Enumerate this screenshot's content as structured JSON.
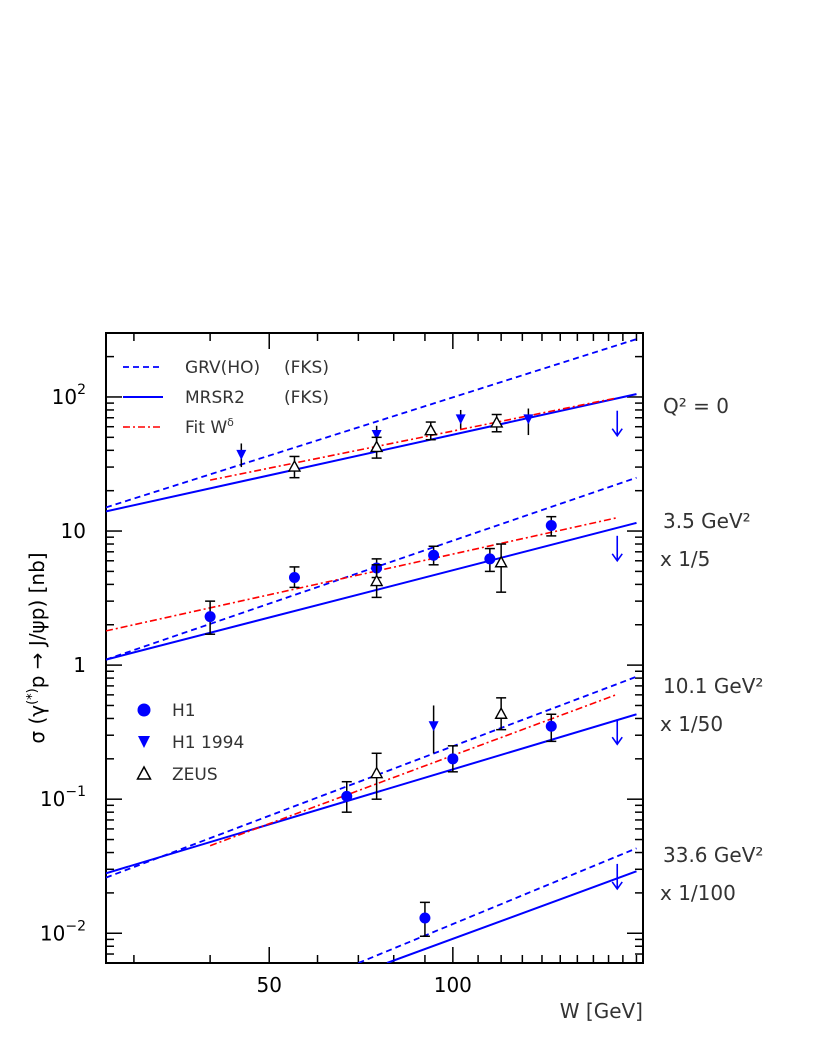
{
  "chart_data": {
    "type": "scatter",
    "title": "",
    "xlabel": "W [GeV]",
    "ylabel": "σ (γ(*)p → J/ψp)  [nb]",
    "x_scale": "log",
    "y_scale": "log",
    "xlim": [
      27,
      205
    ],
    "ylim": [
      0.006,
      300
    ],
    "x_ticks": [
      {
        "value": 50,
        "label": "50"
      },
      {
        "value": 100,
        "label": "100"
      }
    ],
    "y_ticks": [
      {
        "value": 100,
        "base": "10",
        "exp": "2"
      },
      {
        "value": 10,
        "base": "10",
        "exp": ""
      },
      {
        "value": 1,
        "base": "1",
        "exp": ""
      },
      {
        "value": 0.1,
        "base": "10",
        "exp": "−1"
      },
      {
        "value": 0.01,
        "base": "10",
        "exp": "−2"
      }
    ],
    "legend_lines": [
      {
        "label": "GRV(HO)",
        "extra": "(FKS)",
        "style": "dashed",
        "color": "#0000ff"
      },
      {
        "label": "MRSR2",
        "extra": "(FKS)",
        "style": "solid",
        "color": "#0000ff"
      },
      {
        "label": "Fit W",
        "sup": "δ",
        "extra": "",
        "style": "dashdot",
        "color": "#ff0000"
      }
    ],
    "legend_markers": [
      {
        "label": "H1",
        "marker": "circle",
        "color": "#0000ff"
      },
      {
        "label": "H1 1994",
        "marker": "triangle-down",
        "color": "#0000ff"
      },
      {
        "label": "ZEUS",
        "marker": "triangle-up-open",
        "color": "#000000"
      }
    ],
    "q2_labels": [
      {
        "line1": "Q² = 0",
        "line2": ""
      },
      {
        "line1": "3.5 GeV²",
        "line2": "x 1/5"
      },
      {
        "line1": "10.1 GeV²",
        "line2": "x 1/50"
      },
      {
        "line1": "33.6 GeV²",
        "line2": "x 1/100"
      }
    ],
    "panels": [
      {
        "q2": "0",
        "grv": [
          [
            27,
            15
          ],
          [
            200,
            270
          ]
        ],
        "mrsr2": [
          [
            27,
            14
          ],
          [
            200,
            105
          ]
        ],
        "fit": [
          [
            40,
            24
          ],
          [
            185,
            98
          ]
        ],
        "h1": [],
        "h1_1994": [
          {
            "x": 45,
            "y": 37,
            "lo": 30,
            "hi": 45
          },
          {
            "x": 75,
            "y": 52,
            "lo": 44,
            "hi": 61
          },
          {
            "x": 103,
            "y": 68,
            "lo": 58,
            "hi": 80
          },
          {
            "x": 133,
            "y": 68,
            "lo": 52,
            "hi": 82
          }
        ],
        "zeus": [
          {
            "x": 55,
            "y": 30,
            "lo": 25,
            "hi": 36
          },
          {
            "x": 75,
            "y": 42,
            "lo": 35,
            "hi": 50
          },
          {
            "x": 92,
            "y": 56,
            "lo": 48,
            "hi": 65
          },
          {
            "x": 118,
            "y": 64,
            "lo": 55,
            "hi": 74
          }
        ],
        "upper_limits": [
          {
            "x": 186,
            "y": 60
          }
        ]
      },
      {
        "q2": "3.5",
        "grv": [
          [
            27,
            1.1
          ],
          [
            200,
            25
          ]
        ],
        "mrsr2": [
          [
            27,
            1.1
          ],
          [
            200,
            11.5
          ]
        ],
        "fit": [
          [
            27,
            1.8
          ],
          [
            185,
            12.5
          ]
        ],
        "h1": [
          {
            "x": 40,
            "y": 2.3,
            "lo": 1.7,
            "hi": 3.0
          },
          {
            "x": 55,
            "y": 4.5,
            "lo": 3.8,
            "hi": 5.4
          },
          {
            "x": 75,
            "y": 5.3,
            "lo": 4.5,
            "hi": 6.2
          },
          {
            "x": 93,
            "y": 6.6,
            "lo": 5.6,
            "hi": 7.7
          },
          {
            "x": 115,
            "y": 6.2,
            "lo": 5.0,
            "hi": 7.4
          },
          {
            "x": 145,
            "y": 11,
            "lo": 9.2,
            "hi": 12.8
          }
        ],
        "h1_1994": [],
        "zeus": [
          {
            "x": 75,
            "y": 4.2,
            "lo": 3.2,
            "hi": 5.6
          },
          {
            "x": 120,
            "y": 5.8,
            "lo": 3.5,
            "hi": 8.0
          }
        ],
        "upper_limits": [
          {
            "x": 186,
            "y": 7
          }
        ]
      },
      {
        "q2": "10.1",
        "grv": [
          [
            27,
            0.026
          ],
          [
            200,
            0.82
          ]
        ],
        "mrsr2": [
          [
            27,
            0.028
          ],
          [
            200,
            0.43
          ]
        ],
        "fit": [
          [
            40,
            0.045
          ],
          [
            185,
            0.6
          ]
        ],
        "h1": [
          {
            "x": 67,
            "y": 0.105,
            "lo": 0.08,
            "hi": 0.135
          },
          {
            "x": 100,
            "y": 0.2,
            "lo": 0.16,
            "hi": 0.25
          },
          {
            "x": 145,
            "y": 0.35,
            "lo": 0.27,
            "hi": 0.43
          }
        ],
        "h1_1994": [
          {
            "x": 93,
            "y": 0.35,
            "lo": 0.22,
            "hi": 0.5
          }
        ],
        "zeus": [
          {
            "x": 75,
            "y": 0.155,
            "lo": 0.1,
            "hi": 0.22
          },
          {
            "x": 120,
            "y": 0.43,
            "lo": 0.33,
            "hi": 0.57
          }
        ],
        "upper_limits": [
          {
            "x": 186,
            "y": 0.3
          }
        ]
      },
      {
        "q2": "33.6",
        "grv": [
          [
            70,
            0.006
          ],
          [
            200,
            0.043
          ]
        ],
        "mrsr2": [
          [
            78,
            0.006
          ],
          [
            200,
            0.029
          ]
        ],
        "fit": [],
        "h1": [
          {
            "x": 90,
            "y": 0.013,
            "lo": 0.0095,
            "hi": 0.017
          }
        ],
        "h1_1994": [],
        "zeus": [],
        "upper_limits": [
          {
            "x": 186,
            "y": 0.025
          }
        ]
      }
    ]
  }
}
